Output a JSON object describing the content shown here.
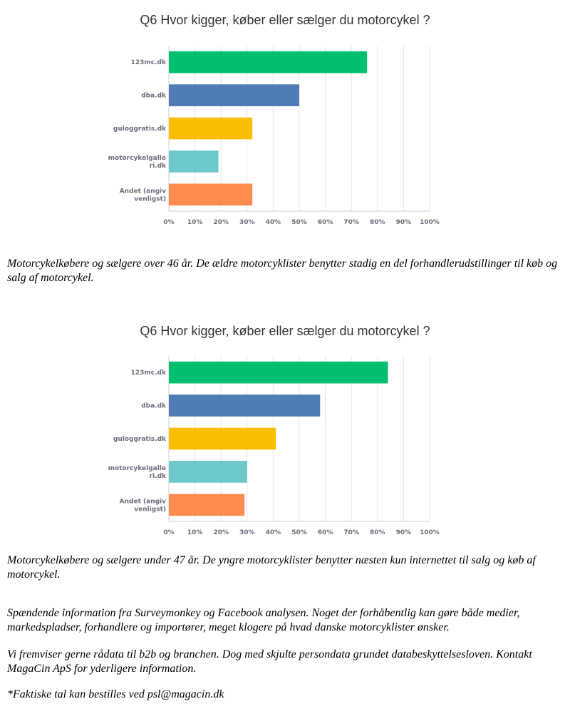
{
  "chart_data": [
    {
      "type": "bar",
      "orientation": "horizontal",
      "title": "Q6 Hvor kigger, køber eller sælger du motorcykel ?",
      "categories": [
        [
          "123mc.dk"
        ],
        [
          "dba.dk"
        ],
        [
          "guloggratis.dk"
        ],
        [
          "motorcykelgalle",
          "ri.dk"
        ],
        [
          "Andet (angiv",
          "venligst)"
        ]
      ],
      "values": [
        76,
        50,
        32,
        19,
        32
      ],
      "colors": [
        "#00bf6f",
        "#507cb6",
        "#f9be00",
        "#6bc8cd",
        "#ff8b4f"
      ],
      "xlim": [
        0,
        100
      ],
      "xticks": [
        "0%",
        "10%",
        "20%",
        "30%",
        "40%",
        "50%",
        "60%",
        "70%",
        "80%",
        "90%",
        "100%"
      ],
      "grid": true,
      "unit": "%"
    },
    {
      "type": "bar",
      "orientation": "horizontal",
      "title": "Q6 Hvor kigger, køber eller sælger du motorcykel ?",
      "categories": [
        [
          "123mc.dk"
        ],
        [
          "dba.dk"
        ],
        [
          "guloggratis.dk"
        ],
        [
          "motorcykelgalle",
          "ri.dk"
        ],
        [
          "Andet (angiv",
          "venligst)"
        ]
      ],
      "values": [
        84,
        58,
        41,
        30,
        29
      ],
      "colors": [
        "#00bf6f",
        "#507cb6",
        "#f9be00",
        "#6bc8cd",
        "#ff8b4f"
      ],
      "xlim": [
        0,
        100
      ],
      "xticks": [
        "0%",
        "10%",
        "20%",
        "30%",
        "40%",
        "50%",
        "60%",
        "70%",
        "80%",
        "90%",
        "100%"
      ],
      "grid": true,
      "unit": "%"
    }
  ],
  "text": {
    "caption1": "Motorcykelkøbere og sælgere over 46 år. De ældre motorcyklister benytter stadig en del forhandlerudstillinger til køb og salg af motorcykel.",
    "caption2": "Motorcykelkøbere og sælgere under 47 år. De yngre motorcyklister benytter næsten kun internettet til salg og køb af motorcykel.",
    "para3": "Spændende information fra Surveymonkey og Facebook analysen. Noget der forhåbentlig kan gøre både medier, markedspladser, forhandlere og importører, meget klogere på hvad danske motorcyklister ønsker.",
    "para4": "Vi fremviser gerne rådata til b2b og branchen. Dog med skjulte persondata grundet databeskyttelsesloven. Kontakt MagaCin ApS for yderligere information.",
    "para5": "*Faktiske tal kan bestilles ved psl@magacin.dk"
  }
}
